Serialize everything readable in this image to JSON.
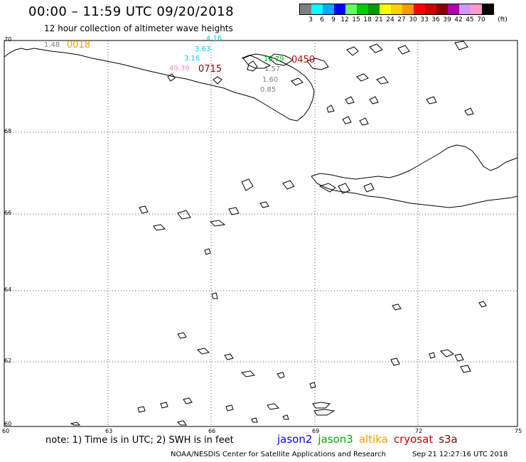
{
  "header": {
    "title": "00:00 – 11:59 UTC 09/20/2018",
    "subtitle": "12 hour collection of altimeter wave heights"
  },
  "legend": {
    "unit_label": "(ft)",
    "bins": [
      {
        "label": "3",
        "color": "#7f7f7f"
      },
      {
        "label": "6",
        "color": "#00ffff"
      },
      {
        "label": "9",
        "color": "#00aaff"
      },
      {
        "label": "12",
        "color": "#0000ff"
      },
      {
        "label": "15",
        "color": "#66ff66"
      },
      {
        "label": "18",
        "color": "#00cc00"
      },
      {
        "label": "21",
        "color": "#009900"
      },
      {
        "label": "24",
        "color": "#ffff00"
      },
      {
        "label": "27",
        "color": "#ffcc00"
      },
      {
        "label": "30",
        "color": "#ff9900"
      },
      {
        "label": "33",
        "color": "#ff0000"
      },
      {
        "label": "36",
        "color": "#cc0000"
      },
      {
        "label": "39",
        "color": "#880000"
      },
      {
        "label": "42",
        "color": "#aa00aa"
      },
      {
        "label": "45",
        "color": "#cc99ff"
      },
      {
        "label": "70",
        "color": "#ff99cc"
      },
      {
        "label": "",
        "color": "#000000"
      }
    ]
  },
  "map": {
    "lon_labels": [
      "60",
      "63",
      "66",
      "69",
      "72",
      "75"
    ],
    "lat_labels": [
      "70",
      "68",
      "66",
      "64",
      "62",
      "60"
    ],
    "bottom_left_lat": "60",
    "observations": [
      {
        "value": "1.48",
        "color": "#7f7f7f"
      },
      {
        "value": "4.16",
        "color": "#00ccff"
      },
      {
        "value": "3.63",
        "color": "#00ccff"
      },
      {
        "value": "3.16",
        "color": "#00ccff"
      },
      {
        "value": "49.39",
        "color": "#ff88cc"
      },
      {
        "value": "15.79",
        "color": "#00bb00"
      },
      {
        "value": "1.57",
        "color": "#7f7f7f"
      },
      {
        "value": "1.60",
        "color": "#7f7f7f"
      },
      {
        "value": "0.85",
        "color": "#7f7f7f"
      }
    ],
    "pass_times": [
      {
        "value": "0018",
        "color": "#ff9900"
      },
      {
        "value": "0715",
        "color": "#880000"
      },
      {
        "value": "0450",
        "color": "#cc0000"
      }
    ]
  },
  "footer": {
    "note": "note: 1) Time is in UTC; 2) SWH is in feet",
    "satellites": [
      {
        "name": "jason2",
        "color": "#0000ff"
      },
      {
        "name": "jason3",
        "color": "#00aa00"
      },
      {
        "name": "altika",
        "color": "#ff9900"
      },
      {
        "name": "cryosat",
        "color": "#cc0000"
      },
      {
        "name": "s3a",
        "color": "#880000"
      }
    ],
    "credit": "NOAA/NESDIS Center for Satellite Applications and Research",
    "timestamp": "Sep 21 12:27:16 UTC 2018"
  }
}
